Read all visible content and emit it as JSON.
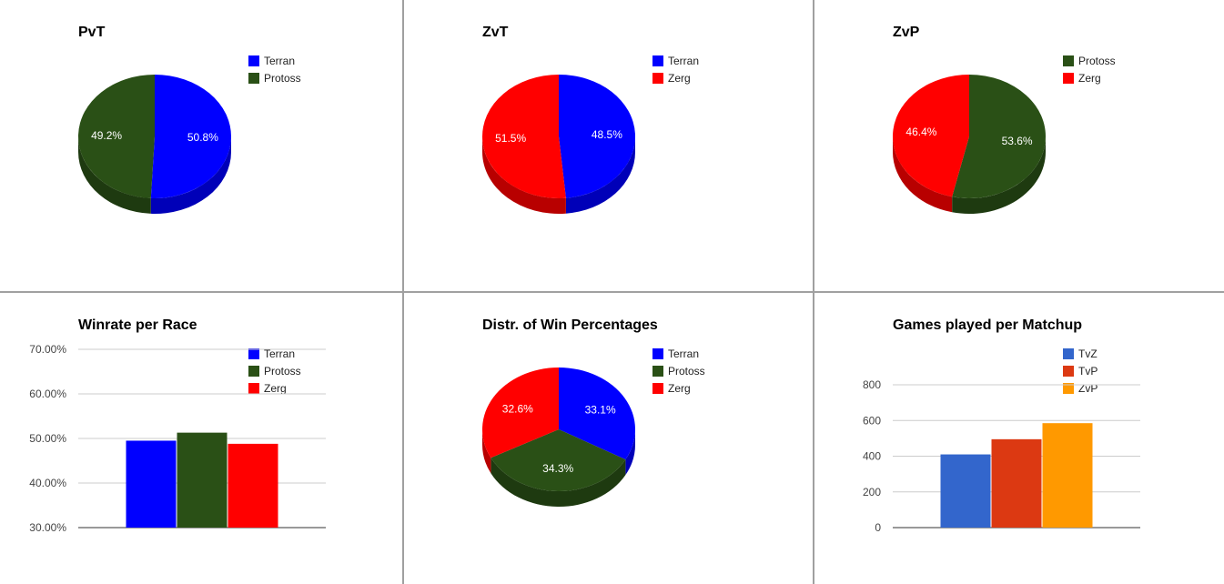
{
  "chart_data": [
    {
      "id": "pvt",
      "type": "pie",
      "title": "PvT",
      "legend": [
        "Terran",
        "Protoss"
      ],
      "colors": {
        "Terran": "#0000ff",
        "Protoss": "#2a5016"
      },
      "slices": [
        {
          "label": "Terran",
          "value": 50.8,
          "pct": "50.8%"
        },
        {
          "label": "Protoss",
          "value": 49.2,
          "pct": "49.2%"
        }
      ]
    },
    {
      "id": "zvt",
      "type": "pie",
      "title": "ZvT",
      "legend": [
        "Terran",
        "Zerg"
      ],
      "colors": {
        "Terran": "#0000ff",
        "Zerg": "#ff0000"
      },
      "slices": [
        {
          "label": "Terran",
          "value": 48.5,
          "pct": "48.5%"
        },
        {
          "label": "Zerg",
          "value": 51.5,
          "pct": "51.5%"
        }
      ]
    },
    {
      "id": "zvp",
      "type": "pie",
      "title": "ZvP",
      "legend": [
        "Protoss",
        "Zerg"
      ],
      "colors": {
        "Protoss": "#2a5016",
        "Zerg": "#ff0000"
      },
      "slices": [
        {
          "label": "Protoss",
          "value": 53.6,
          "pct": "53.6%"
        },
        {
          "label": "Zerg",
          "value": 46.4,
          "pct": "46.4%"
        }
      ]
    },
    {
      "id": "winrate",
      "type": "bar",
      "title": "Winrate per Race",
      "legend": [
        "Terran",
        "Protoss",
        "Zerg"
      ],
      "colors": {
        "Terran": "#0000ff",
        "Protoss": "#2a5016",
        "Zerg": "#ff0000"
      },
      "series": [
        {
          "name": "Terran",
          "values": [
            49.5
          ]
        },
        {
          "name": "Protoss",
          "values": [
            51.3
          ]
        },
        {
          "name": "Zerg",
          "values": [
            48.8
          ]
        }
      ],
      "ylim": [
        30,
        70
      ],
      "yticks": [
        "70.00%",
        "60.00%",
        "50.00%",
        "40.00%",
        "30.00%"
      ],
      "grid": true
    },
    {
      "id": "distr",
      "type": "pie",
      "title": "Distr. of Win Percentages",
      "legend": [
        "Terran",
        "Protoss",
        "Zerg"
      ],
      "colors": {
        "Terran": "#0000ff",
        "Protoss": "#2a5016",
        "Zerg": "#ff0000"
      },
      "slices": [
        {
          "label": "Terran",
          "value": 33.1,
          "pct": "33.1%"
        },
        {
          "label": "Protoss",
          "value": 34.3,
          "pct": "34.3%"
        },
        {
          "label": "Zerg",
          "value": 32.6,
          "pct": "32.6%"
        }
      ]
    },
    {
      "id": "games",
      "type": "bar",
      "title": "Games played per Matchup",
      "legend": [
        "TvZ",
        "TvP",
        "ZvP"
      ],
      "colors": {
        "TvZ": "#3366cc",
        "TvP": "#dc3912",
        "ZvP": "#ff9900"
      },
      "series": [
        {
          "name": "TvZ",
          "values": [
            410
          ]
        },
        {
          "name": "TvP",
          "values": [
            495
          ]
        },
        {
          "name": "ZvP",
          "values": [
            585
          ]
        }
      ],
      "ylim": [
        0,
        800
      ],
      "yticks": [
        "800",
        "600",
        "400",
        "200",
        "0"
      ],
      "grid": true
    }
  ]
}
